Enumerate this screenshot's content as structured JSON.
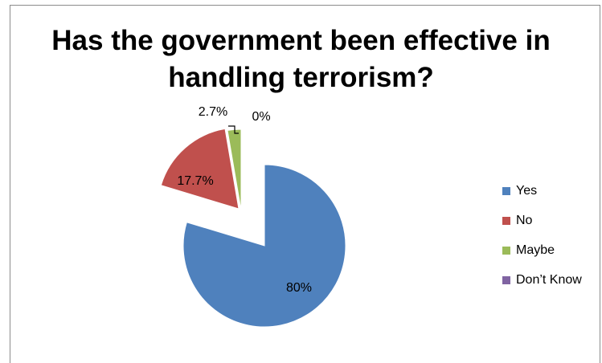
{
  "chart_data": {
    "type": "pie",
    "title_lines": [
      "Has the government been effective in",
      "handling terrorism?"
    ],
    "categories": [
      "Yes",
      "No",
      "Maybe",
      "Don’t Know"
    ],
    "values": [
      80,
      17.7,
      2.7,
      0
    ],
    "data_labels": [
      "80%",
      "17.7%",
      "2.7%",
      "0%"
    ],
    "colors": [
      "#4f81bd",
      "#c0504d",
      "#9bbb59",
      "#8064a2"
    ],
    "legend_position": "right",
    "exploded": true
  }
}
